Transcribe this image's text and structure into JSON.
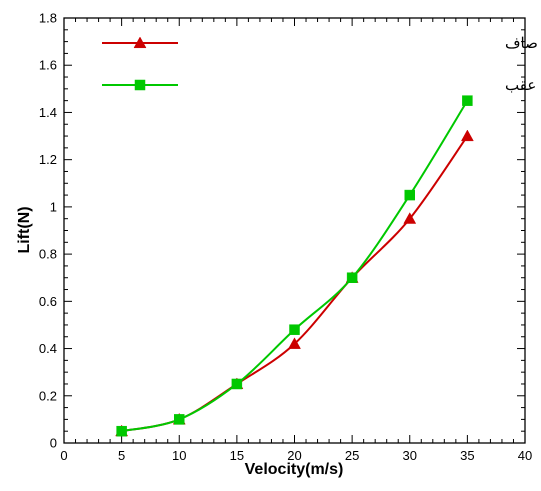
{
  "chart_data": {
    "type": "line",
    "title": "",
    "xlabel": "Velocity(m/s)",
    "ylabel": "Lift(N)",
    "xlim": [
      0,
      40
    ],
    "ylim": [
      0,
      1.8
    ],
    "xticks": [
      "0",
      "5",
      "10",
      "15",
      "20",
      "25",
      "30",
      "35",
      "40"
    ],
    "yticks": [
      "0",
      "0.2",
      "0.4",
      "0.6",
      "0.8",
      "1",
      "1.2",
      "1.4",
      "1.6",
      "1.8"
    ],
    "x": [
      5,
      10,
      15,
      20,
      25,
      30,
      35
    ],
    "grid": false,
    "legend_position": "top-right",
    "series": [
      {
        "name": "نیروی پسا سطح صاف",
        "color": "#cc0000",
        "marker": "triangle",
        "values": [
          0.05,
          0.1,
          0.25,
          0.42,
          0.7,
          0.95,
          1.3
        ]
      },
      {
        "name": "نیروی پسا سطح زبر بعد از چرخ عقب",
        "color": "#00c800",
        "marker": "square",
        "values": [
          0.05,
          0.1,
          0.25,
          0.48,
          0.7,
          1.05,
          1.45
        ]
      }
    ]
  }
}
